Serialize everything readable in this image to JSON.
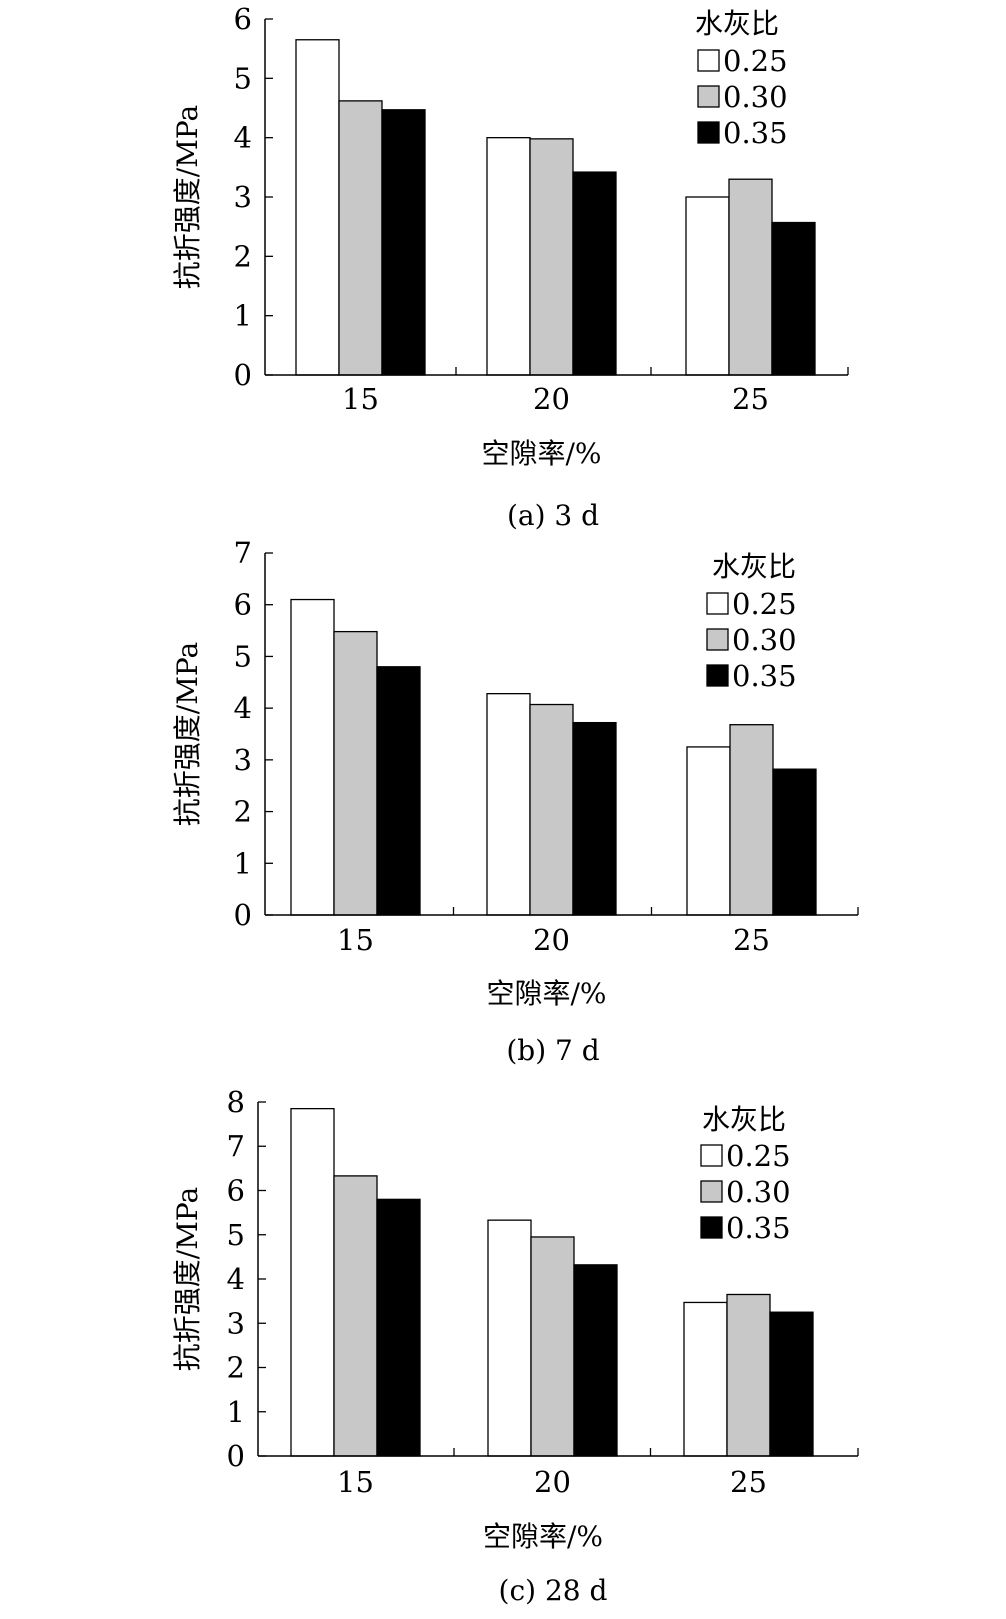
{
  "legend_title": "水灰比",
  "chart_data": [
    {
      "type": "bar",
      "caption": "(a) 3 d",
      "xlabel": "空隙率/%",
      "ylabel": "抗折强度/MPa",
      "categories": [
        "15",
        "20",
        "25"
      ],
      "ylim": [
        0,
        6
      ],
      "yticks": [
        0,
        1,
        2,
        3,
        4,
        5,
        6
      ],
      "series": [
        {
          "name": "0.25",
          "values": [
            5.65,
            4.0,
            3.0
          ],
          "color": "#ffffff"
        },
        {
          "name": "0.30",
          "values": [
            4.62,
            3.98,
            3.3
          ],
          "color": "#c8c8c8"
        },
        {
          "name": "0.35",
          "values": [
            4.47,
            3.42,
            2.57
          ],
          "color": "#000000"
        }
      ]
    },
    {
      "type": "bar",
      "caption": "(b) 7 d",
      "xlabel": "空隙率/%",
      "ylabel": "抗折强度/MPa",
      "categories": [
        "15",
        "20",
        "25"
      ],
      "ylim": [
        0,
        7
      ],
      "yticks": [
        0,
        1,
        2,
        3,
        4,
        5,
        6,
        7
      ],
      "series": [
        {
          "name": "0.25",
          "values": [
            6.1,
            4.28,
            3.25
          ],
          "color": "#ffffff"
        },
        {
          "name": "0.30",
          "values": [
            5.48,
            4.07,
            3.68
          ],
          "color": "#c8c8c8"
        },
        {
          "name": "0.35",
          "values": [
            4.8,
            3.72,
            2.82
          ],
          "color": "#000000"
        }
      ]
    },
    {
      "type": "bar",
      "caption": "(c) 28 d",
      "xlabel": "空隙率/%",
      "ylabel": "抗折强度/MPa",
      "categories": [
        "15",
        "20",
        "25"
      ],
      "ylim": [
        0,
        8
      ],
      "yticks": [
        0,
        1,
        2,
        3,
        4,
        5,
        6,
        7,
        8
      ],
      "series": [
        {
          "name": "0.25",
          "values": [
            7.85,
            5.33,
            3.47
          ],
          "color": "#ffffff"
        },
        {
          "name": "0.30",
          "values": [
            6.33,
            4.95,
            3.65
          ],
          "color": "#c8c8c8"
        },
        {
          "name": "0.35",
          "values": [
            5.8,
            4.32,
            3.25
          ],
          "color": "#000000"
        }
      ]
    }
  ]
}
